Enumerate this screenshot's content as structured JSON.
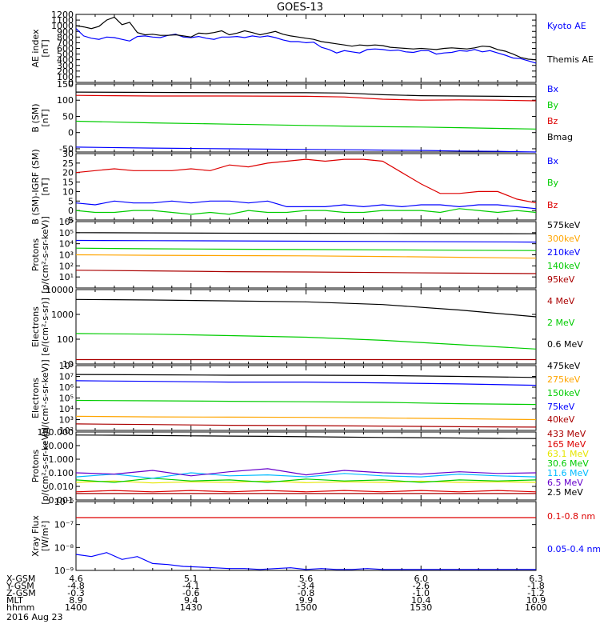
{
  "title": "GOES-13",
  "date_label": "2016 Aug 23",
  "colors": {
    "black": "#000000",
    "blue": "#0000ff",
    "green": "#00cc00",
    "red": "#dd0000",
    "orange": "#ffa500",
    "darkred": "#aa0000",
    "yellow": "#e6e600",
    "cyan": "#00bbff",
    "purple": "#6600cc",
    "magenta": "#aa00aa"
  },
  "ephemeris": {
    "row_labels": [
      "X-GSM",
      "Y-GSM",
      "Z-GSM",
      "MLT",
      "hhmm"
    ],
    "columns": [
      {
        "values": [
          "4.6",
          "-4.8",
          "-0.3",
          "8.9",
          "1400"
        ]
      },
      {
        "values": [
          "5.1",
          "-4.1",
          "-0.6",
          "9.4",
          "1430"
        ]
      },
      {
        "values": [
          "5.6",
          "-3.4",
          "-0.8",
          "9.9",
          "1500"
        ]
      },
      {
        "values": [
          "6.0",
          "-2.6",
          "-1.0",
          "10.4",
          "1530"
        ]
      },
      {
        "values": [
          "6.3",
          "-1.8",
          "-1.2",
          "10.9",
          "1600"
        ]
      }
    ]
  },
  "chart_data": [
    {
      "id": "ae",
      "type": "line",
      "ylabel": "AE index\n[nT]",
      "scale": "linear",
      "ylim": [
        0,
        1200
      ],
      "ytick_labels": [
        "0",
        "100",
        "200",
        "300",
        "400",
        "500",
        "600",
        "700",
        "800",
        "900",
        "1000",
        "1100",
        "1200"
      ],
      "ytick_values": [
        0,
        100,
        200,
        300,
        400,
        500,
        600,
        700,
        800,
        900,
        1000,
        1100,
        1200
      ],
      "x": [
        0,
        2,
        4,
        6,
        8,
        10,
        12,
        14,
        16,
        18,
        20,
        22,
        24,
        26,
        28,
        30,
        32,
        34,
        36,
        38,
        40,
        42,
        44,
        46,
        48,
        50,
        52,
        54,
        56,
        58,
        60,
        62,
        64,
        66,
        68,
        70,
        72,
        74,
        76,
        78,
        80,
        82,
        84,
        86,
        88,
        90,
        92,
        94,
        96,
        98,
        100,
        102,
        104,
        106,
        108,
        110,
        112,
        114,
        116,
        118,
        120
      ],
      "series": [
        {
          "name": "Kyoto AE",
          "color": "#0000ff",
          "values": [
            950,
            820,
            780,
            760,
            800,
            790,
            760,
            730,
            810,
            820,
            800,
            790,
            830,
            850,
            800,
            790,
            810,
            780,
            760,
            800,
            800,
            810,
            790,
            820,
            800,
            820,
            790,
            750,
            720,
            720,
            700,
            710,
            620,
            580,
            520,
            560,
            540,
            520,
            580,
            590,
            580,
            560,
            570,
            540,
            530,
            560,
            560,
            500,
            520,
            530,
            560,
            550,
            580,
            540,
            560,
            520,
            480,
            430,
            420,
            380,
            340
          ]
        },
        {
          "name": "Themis AE",
          "color": "#000000",
          "values": [
            1000,
            980,
            950,
            990,
            1100,
            1150,
            1020,
            1060,
            880,
            840,
            850,
            830,
            830,
            840,
            820,
            800,
            870,
            860,
            880,
            910,
            840,
            870,
            910,
            880,
            840,
            870,
            900,
            850,
            820,
            800,
            780,
            760,
            720,
            700,
            680,
            660,
            640,
            660,
            650,
            660,
            650,
            620,
            610,
            600,
            590,
            600,
            590,
            580,
            600,
            610,
            600,
            590,
            610,
            640,
            630,
            580,
            550,
            500,
            440,
            410,
            400
          ]
        }
      ]
    },
    {
      "id": "b",
      "type": "line",
      "ylabel": "B (SM)\n[nT]",
      "scale": "linear",
      "ylim": [
        -60,
        150
      ],
      "ytick_labels": [
        "-50",
        "0",
        "50",
        "100",
        "150"
      ],
      "ytick_values": [
        -50,
        0,
        50,
        100,
        150
      ],
      "x": [
        0,
        20,
        40,
        60,
        70,
        80,
        90,
        100,
        110,
        120
      ],
      "series": [
        {
          "name": "Bx",
          "color": "#0000ff",
          "values": [
            -45,
            -48,
            -50,
            -52,
            -53,
            -54,
            -55,
            -57,
            -58,
            -60
          ]
        },
        {
          "name": "By",
          "color": "#00cc00",
          "values": [
            35,
            30,
            26,
            22,
            20,
            18,
            17,
            15,
            13,
            11
          ]
        },
        {
          "name": "Bz",
          "color": "#dd0000",
          "values": [
            115,
            113,
            113,
            112,
            110,
            103,
            100,
            101,
            100,
            98
          ]
        },
        {
          "name": "Bmag",
          "color": "#000000",
          "values": [
            125,
            124,
            123,
            123,
            122,
            117,
            114,
            113,
            112,
            111
          ]
        }
      ]
    },
    {
      "id": "bdiff",
      "type": "line",
      "ylabel": "B (SM)-IGRF (SM)\n[nT]",
      "scale": "linear",
      "ylim": [
        -5,
        30
      ],
      "ytick_labels": [
        "-5",
        "0",
        "5",
        "10",
        "15",
        "20",
        "25",
        "30"
      ],
      "ytick_values": [
        -5,
        0,
        5,
        10,
        15,
        20,
        25,
        30
      ],
      "x": [
        0,
        5,
        10,
        15,
        20,
        25,
        30,
        35,
        40,
        45,
        50,
        55,
        60,
        65,
        70,
        75,
        80,
        85,
        90,
        95,
        100,
        105,
        110,
        115,
        120
      ],
      "series": [
        {
          "name": "Bx",
          "color": "#0000ff",
          "values": [
            4,
            3,
            5,
            4,
            4,
            5,
            4,
            5,
            5,
            4,
            5,
            2,
            2,
            2,
            3,
            2,
            3,
            2,
            3,
            3,
            2,
            3,
            3,
            2,
            1
          ]
        },
        {
          "name": "By",
          "color": "#00cc00",
          "values": [
            0,
            -1,
            -1,
            0,
            0,
            -1,
            -2,
            -1,
            -2,
            0,
            -1,
            -1,
            0,
            0,
            -1,
            -1,
            0,
            0,
            0,
            -1,
            1,
            0,
            -1,
            0,
            -1
          ]
        },
        {
          "name": "Bz",
          "color": "#dd0000",
          "values": [
            20,
            21,
            22,
            21,
            21,
            21,
            22,
            21,
            24,
            23,
            25,
            26,
            27,
            26,
            27,
            27,
            26,
            20,
            14,
            9,
            9,
            10,
            10,
            6,
            4
          ]
        }
      ]
    },
    {
      "id": "protons_low",
      "type": "line",
      "ylabel": "Protons\n[p/(cm²-s-sr-keV)]",
      "scale": "log",
      "ylim": [
        1,
        1000000
      ],
      "ytick_labels": [
        "10¹",
        "10²",
        "10³",
        "10⁴",
        "10⁵",
        "10⁶"
      ],
      "ytick_values": [
        10,
        100,
        1000,
        10000,
        100000,
        1000000
      ],
      "x": [
        0,
        20,
        40,
        60,
        80,
        100,
        120
      ],
      "series": [
        {
          "name": "575keV",
          "color": "#000000",
          "values": [
            100000,
            95000,
            90000,
            88000,
            85000,
            82000,
            80000
          ]
        },
        {
          "name": "300keV",
          "color": "#ffa500",
          "values": [
            1000,
            900,
            850,
            800,
            700,
            600,
            500
          ]
        },
        {
          "name": "210keV",
          "color": "#0000ff",
          "values": [
            20000,
            19000,
            18000,
            17000,
            16000,
            15000,
            14000
          ]
        },
        {
          "name": "140keV",
          "color": "#00cc00",
          "values": [
            4000,
            3500,
            3200,
            3000,
            2800,
            2600,
            2400
          ]
        },
        {
          "name": "95keV",
          "color": "#aa0000",
          "values": [
            40,
            35,
            30,
            28,
            25,
            22,
            20
          ]
        }
      ]
    },
    {
      "id": "electrons_int",
      "type": "line",
      "ylabel": "Electrons\n[e/(cm²-s-sr)]",
      "scale": "log",
      "ylim": [
        10,
        10000
      ],
      "ytick_labels": [
        "10",
        "100",
        "1000",
        "10000"
      ],
      "ytick_values": [
        10,
        100,
        1000,
        10000
      ],
      "x": [
        0,
        20,
        40,
        60,
        80,
        100,
        120
      ],
      "series": [
        {
          "name": "4 MeV",
          "color": "#aa0000",
          "values": [
            15,
            15,
            15,
            15,
            15,
            15,
            15
          ]
        },
        {
          "name": "2 MeV",
          "color": "#00cc00",
          "values": [
            170,
            160,
            140,
            120,
            90,
            60,
            40
          ]
        },
        {
          "name": "0.6 MeV",
          "color": "#000000",
          "values": [
            4000,
            3800,
            3500,
            3200,
            2500,
            1500,
            800
          ]
        }
      ]
    },
    {
      "id": "electrons_diff",
      "type": "line",
      "ylabel": "Electrons\n[e/(cm²-s-sr-keV)]",
      "scale": "log",
      "ylim": [
        100,
        100000000
      ],
      "ytick_labels": [
        "10²",
        "10³",
        "10⁴",
        "10⁵",
        "10⁶",
        "10⁷",
        "10⁸"
      ],
      "ytick_values": [
        100,
        1000,
        10000,
        100000,
        1000000,
        10000000,
        100000000
      ],
      "x": [
        0,
        20,
        40,
        60,
        80,
        100,
        120
      ],
      "series": [
        {
          "name": "475keV",
          "color": "#000000",
          "values": [
            15000000,
            14000000,
            13000000,
            13000000,
            12000000,
            10000000,
            8000000
          ]
        },
        {
          "name": "275keV",
          "color": "#ffa500",
          "values": [
            2000,
            1800,
            1700,
            1600,
            1400,
            1200,
            1000
          ]
        },
        {
          "name": "150keV",
          "color": "#00cc00",
          "values": [
            60000,
            55000,
            50000,
            45000,
            40000,
            30000,
            25000
          ]
        },
        {
          "name": "75keV",
          "color": "#0000ff",
          "values": [
            4000000,
            3500000,
            3000000,
            3000000,
            2500000,
            2000000,
            1500000
          ]
        },
        {
          "name": "40keV",
          "color": "#aa0000",
          "values": [
            400,
            350,
            300,
            280,
            250,
            220,
            200
          ]
        }
      ]
    },
    {
      "id": "protons_high",
      "type": "line",
      "ylabel": "Protons\n[p/(cm²-s-sr-keV)]",
      "scale": "log",
      "ylim": [
        0.001,
        100
      ],
      "ytick_labels": [
        "0.001",
        "0.010",
        "0.100",
        "1.000",
        "10.000",
        "100.000"
      ],
      "ytick_values": [
        0.001,
        0.01,
        0.1,
        1,
        10,
        100
      ],
      "x": [
        0,
        10,
        20,
        30,
        40,
        50,
        60,
        70,
        80,
        90,
        100,
        110,
        120
      ],
      "series": [
        {
          "name": "433 MeV",
          "color": "#aa0000",
          "values": [
            0.003,
            0.003,
            0.003,
            0.003,
            0.003,
            0.003,
            0.003,
            0.003,
            0.003,
            0.003,
            0.003,
            0.003,
            0.003
          ]
        },
        {
          "name": "165 MeV",
          "color": "#dd0000",
          "values": [
            0.004,
            0.005,
            0.004,
            0.005,
            0.004,
            0.005,
            0.004,
            0.005,
            0.004,
            0.005,
            0.004,
            0.005,
            0.004
          ]
        },
        {
          "name": "63.1 MeV",
          "color": "#e6e600",
          "values": [
            0.02,
            0.025,
            0.018,
            0.022,
            0.02,
            0.025,
            0.019,
            0.022,
            0.02,
            0.024,
            0.02,
            0.022,
            0.02
          ]
        },
        {
          "name": "30.6 MeV",
          "color": "#00cc00",
          "values": [
            0.03,
            0.02,
            0.04,
            0.025,
            0.03,
            0.02,
            0.035,
            0.025,
            0.03,
            0.02,
            0.03,
            0.025,
            0.03
          ]
        },
        {
          "name": "11.6 MeV",
          "color": "#00bbff",
          "values": [
            0.05,
            0.08,
            0.04,
            0.1,
            0.06,
            0.07,
            0.05,
            0.09,
            0.06,
            0.05,
            0.08,
            0.06,
            0.05
          ]
        },
        {
          "name": "6.5 MeV",
          "color": "#6600cc",
          "values": [
            0.1,
            0.08,
            0.15,
            0.06,
            0.12,
            0.2,
            0.07,
            0.15,
            0.1,
            0.08,
            0.12,
            0.09,
            0.1
          ]
        },
        {
          "name": "2.5 MeV",
          "color": "#000000",
          "values": [
            60,
            58,
            55,
            52,
            50,
            48,
            45,
            42,
            40,
            38,
            36,
            34,
            33
          ]
        }
      ]
    },
    {
      "id": "xray",
      "type": "line",
      "ylabel": "Xray Flux\n[W/m²]",
      "scale": "log",
      "ylim": [
        1e-09,
        1e-06
      ],
      "ytick_labels": [
        "10⁻⁹",
        "10⁻⁸",
        "10⁻⁷",
        "10⁻⁶"
      ],
      "ytick_values": [
        1e-09,
        1e-08,
        1e-07,
        1e-06
      ],
      "x": [
        0,
        4,
        8,
        12,
        16,
        20,
        24,
        28,
        32,
        36,
        40,
        44,
        48,
        52,
        56,
        60,
        64,
        68,
        72,
        76,
        80,
        84,
        88,
        92,
        96,
        100,
        104,
        108,
        112,
        116,
        120
      ],
      "series": [
        {
          "name": "0.1-0.8 nm",
          "color": "#dd0000",
          "values": [
            2e-07,
            2e-07,
            2e-07,
            2e-07,
            2e-07,
            2e-07,
            2e-07,
            2e-07,
            2e-07,
            2e-07,
            2e-07,
            2e-07,
            2e-07,
            2e-07,
            2e-07,
            2e-07,
            2e-07,
            2e-07,
            2e-07,
            2e-07,
            2e-07,
            2e-07,
            2e-07,
            2e-07,
            2e-07,
            2e-07,
            2e-07,
            2e-07,
            2e-07,
            2e-07,
            2e-07
          ]
        },
        {
          "name": "0.05-0.4 nm",
          "color": "#0000ff",
          "values": [
            5e-09,
            4e-09,
            6e-09,
            3e-09,
            4e-09,
            2e-09,
            1.8e-09,
            1.5e-09,
            1.4e-09,
            1.3e-09,
            1.2e-09,
            1.2e-09,
            1.1e-09,
            1.2e-09,
            1.3e-09,
            1.1e-09,
            1.2e-09,
            1.1e-09,
            1.1e-09,
            1.2e-09,
            1.1e-09,
            1.1e-09,
            1.1e-09,
            1.1e-09,
            1.1e-09,
            1.1e-09,
            1.1e-09,
            1.1e-09,
            1.1e-09,
            1.1e-09,
            1.1e-09
          ]
        }
      ]
    }
  ]
}
